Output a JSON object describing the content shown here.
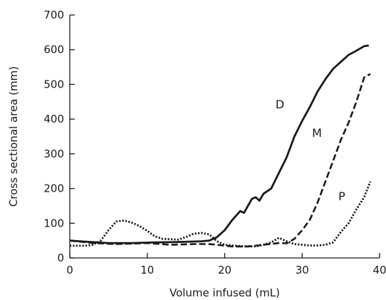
{
  "chart_data": {
    "type": "line",
    "title": "",
    "xlabel": "Volume infused (mL)",
    "ylabel": "Cross sectional area (mm)",
    "xlim": [
      0,
      40
    ],
    "ylim": [
      0,
      700
    ],
    "xticks": [
      0,
      10,
      20,
      30,
      40
    ],
    "yticks": [
      0,
      100,
      200,
      300,
      400,
      500,
      600,
      700
    ],
    "grid": false,
    "legend": "none",
    "series": [
      {
        "name": "D",
        "color": "#1a1a1a",
        "style": "solid",
        "points": [
          [
            0,
            50
          ],
          [
            2,
            47
          ],
          [
            5,
            43
          ],
          [
            8,
            43
          ],
          [
            11,
            45
          ],
          [
            14,
            46
          ],
          [
            17,
            48
          ],
          [
            18,
            50
          ],
          [
            19,
            60
          ],
          [
            20,
            80
          ],
          [
            21,
            110
          ],
          [
            22,
            135
          ],
          [
            22.5,
            130
          ],
          [
            23,
            150
          ],
          [
            23.5,
            170
          ],
          [
            24,
            175
          ],
          [
            24.5,
            165
          ],
          [
            25,
            185
          ],
          [
            26,
            200
          ],
          [
            27,
            245
          ],
          [
            28,
            290
          ],
          [
            29,
            350
          ],
          [
            30,
            395
          ],
          [
            31,
            435
          ],
          [
            32,
            480
          ],
          [
            33,
            515
          ],
          [
            34,
            545
          ],
          [
            35,
            565
          ],
          [
            36,
            585
          ],
          [
            37,
            597
          ],
          [
            38,
            610
          ],
          [
            38.6,
            612
          ]
        ]
      },
      {
        "name": "M",
        "color": "#1a1a1a",
        "style": "dashed",
        "points": [
          [
            0,
            50
          ],
          [
            3,
            43
          ],
          [
            6,
            40
          ],
          [
            10,
            43
          ],
          [
            13,
            38
          ],
          [
            16,
            40
          ],
          [
            18,
            40
          ],
          [
            19,
            38
          ],
          [
            21,
            33
          ],
          [
            23,
            33
          ],
          [
            25,
            38
          ],
          [
            27,
            43
          ],
          [
            28,
            42
          ],
          [
            29,
            55
          ],
          [
            30,
            80
          ],
          [
            31,
            110
          ],
          [
            32,
            160
          ],
          [
            33,
            220
          ],
          [
            34,
            280
          ],
          [
            35,
            340
          ],
          [
            36,
            390
          ],
          [
            37,
            450
          ],
          [
            38,
            520
          ],
          [
            38.8,
            530
          ]
        ]
      },
      {
        "name": "P",
        "color": "#1a1a1a",
        "style": "dotted",
        "points": [
          [
            0,
            35
          ],
          [
            2,
            35
          ],
          [
            3,
            38
          ],
          [
            4,
            50
          ],
          [
            5,
            80
          ],
          [
            6,
            105
          ],
          [
            7,
            108
          ],
          [
            8,
            102
          ],
          [
            9,
            92
          ],
          [
            10,
            78
          ],
          [
            11,
            62
          ],
          [
            12,
            55
          ],
          [
            14,
            53
          ],
          [
            15,
            60
          ],
          [
            16,
            70
          ],
          [
            17,
            72
          ],
          [
            18,
            68
          ],
          [
            19,
            48
          ],
          [
            20,
            38
          ],
          [
            22,
            34
          ],
          [
            24,
            33
          ],
          [
            25,
            38
          ],
          [
            26,
            45
          ],
          [
            27,
            58
          ],
          [
            28,
            48
          ],
          [
            29,
            40
          ],
          [
            30,
            38
          ],
          [
            31,
            36
          ],
          [
            32,
            36
          ],
          [
            33,
            38
          ],
          [
            34,
            45
          ],
          [
            35,
            75
          ],
          [
            36,
            100
          ],
          [
            37,
            140
          ],
          [
            38,
            175
          ],
          [
            38.8,
            220
          ]
        ]
      }
    ]
  }
}
